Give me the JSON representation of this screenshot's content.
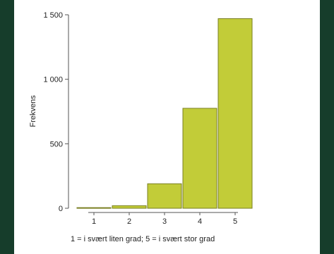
{
  "chart_data": {
    "type": "bar",
    "categories": [
      "1",
      "2",
      "3",
      "4",
      "5"
    ],
    "values": [
      5,
      20,
      190,
      775,
      1470
    ],
    "title": "",
    "xlabel": "1 = i svært liten grad; 5 = i svært stor grad",
    "ylabel": "Frekvens",
    "ylim": [
      0,
      1600
    ],
    "yticks": [
      0,
      500,
      1000,
      1500
    ],
    "ytick_labels": [
      "0",
      "500",
      "1 000",
      "1 500"
    ],
    "grid": false,
    "legend": "none",
    "colors": {
      "bar_fill": "#c2cc38",
      "bar_edge": "#7a7f22",
      "background": "#ffffff",
      "frame": "#163d2b"
    }
  }
}
